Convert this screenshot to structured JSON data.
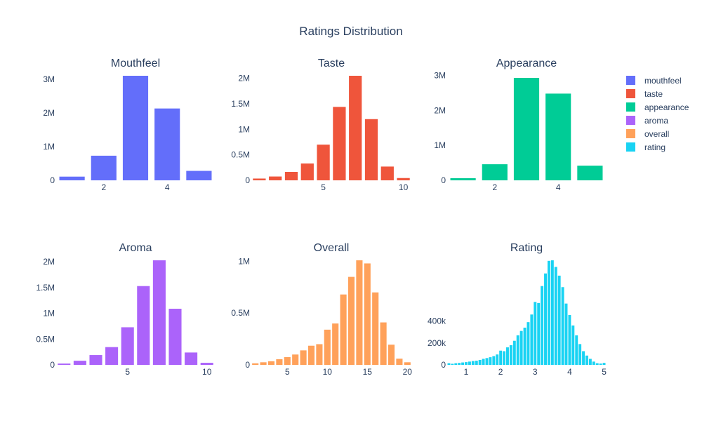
{
  "figure": {
    "title": "Ratings Distribution"
  },
  "legend": {
    "placement": "right",
    "items": [
      "mouthfeel",
      "taste",
      "appearance",
      "aroma",
      "overall",
      "rating"
    ]
  },
  "chart_data": [
    {
      "type": "bar",
      "name": "mouthfeel",
      "title": "Mouthfeel",
      "color": "#636efa",
      "x": [
        1,
        2,
        3,
        4,
        5
      ],
      "values": [
        110000,
        730000,
        3100000,
        2130000,
        280000
      ],
      "xlim": [
        0.5,
        5.5
      ],
      "ylim": [
        0,
        3100000
      ],
      "xticks": [
        {
          "v": 2,
          "label": "2"
        },
        {
          "v": 4,
          "label": "4"
        }
      ],
      "yticks": [
        {
          "v": 0,
          "label": "0"
        },
        {
          "v": 1000000,
          "label": "1M"
        },
        {
          "v": 2000000,
          "label": "2M"
        },
        {
          "v": 3000000,
          "label": "3M"
        }
      ],
      "grid": false
    },
    {
      "type": "bar",
      "name": "taste",
      "title": "Taste",
      "color": "#ef553b",
      "x": [
        1,
        2,
        3,
        4,
        5,
        6,
        7,
        8,
        9,
        10
      ],
      "values": [
        35000,
        75000,
        165000,
        330000,
        700000,
        1440000,
        2050000,
        1200000,
        270000,
        45000
      ],
      "xlim": [
        0.5,
        10.5
      ],
      "ylim": [
        0,
        2050000
      ],
      "xticks": [
        {
          "v": 5,
          "label": "5"
        },
        {
          "v": 10,
          "label": "10"
        }
      ],
      "yticks": [
        {
          "v": 0,
          "label": "0"
        },
        {
          "v": 500000,
          "label": "0.5M"
        },
        {
          "v": 1000000,
          "label": "1M"
        },
        {
          "v": 1500000,
          "label": "1.5M"
        },
        {
          "v": 2000000,
          "label": "2M"
        }
      ],
      "grid": false
    },
    {
      "type": "bar",
      "name": "appearance",
      "title": "Appearance",
      "color": "#00cc96",
      "x": [
        1,
        2,
        3,
        4,
        5
      ],
      "values": [
        60000,
        460000,
        2930000,
        2480000,
        420000
      ],
      "xlim": [
        0.5,
        5.5
      ],
      "ylim": [
        0,
        2990000
      ],
      "xticks": [
        {
          "v": 2,
          "label": "2"
        },
        {
          "v": 4,
          "label": "4"
        }
      ],
      "yticks": [
        {
          "v": 0,
          "label": "0"
        },
        {
          "v": 1000000,
          "label": "1M"
        },
        {
          "v": 2000000,
          "label": "2M"
        },
        {
          "v": 3000000,
          "label": "3M"
        }
      ],
      "grid": false
    },
    {
      "type": "bar",
      "name": "aroma",
      "title": "Aroma",
      "color": "#ab63fa",
      "x": [
        1,
        2,
        3,
        4,
        5,
        6,
        7,
        8,
        9,
        10
      ],
      "values": [
        25000,
        80000,
        190000,
        345000,
        730000,
        1530000,
        2030000,
        1090000,
        240000,
        40000
      ],
      "xlim": [
        0.5,
        10.5
      ],
      "ylim": [
        0,
        2030000
      ],
      "xticks": [
        {
          "v": 5,
          "label": "5"
        },
        {
          "v": 10,
          "label": "10"
        }
      ],
      "yticks": [
        {
          "v": 0,
          "label": "0"
        },
        {
          "v": 500000,
          "label": "0.5M"
        },
        {
          "v": 1000000,
          "label": "1M"
        },
        {
          "v": 1500000,
          "label": "1.5M"
        },
        {
          "v": 2000000,
          "label": "2M"
        }
      ],
      "grid": false
    },
    {
      "type": "bar",
      "name": "overall",
      "title": "Overall",
      "color": "#ffa15a",
      "x": [
        1,
        2,
        3,
        4,
        5,
        6,
        7,
        8,
        9,
        10,
        11,
        12,
        13,
        14,
        15,
        16,
        17,
        18,
        19,
        20
      ],
      "values": [
        15000,
        25000,
        35000,
        55000,
        75000,
        100000,
        140000,
        185000,
        200000,
        340000,
        400000,
        680000,
        850000,
        1010000,
        980000,
        700000,
        410000,
        195000,
        60000,
        25000
      ],
      "xlim": [
        0.5,
        20.5
      ],
      "ylim": [
        0,
        1010000
      ],
      "xticks": [
        {
          "v": 5,
          "label": "5"
        },
        {
          "v": 10,
          "label": "10"
        },
        {
          "v": 15,
          "label": "15"
        },
        {
          "v": 20,
          "label": "20"
        }
      ],
      "yticks": [
        {
          "v": 0,
          "label": "0"
        },
        {
          "v": 500000,
          "label": "0.5M"
        },
        {
          "v": 1000000,
          "label": "1M"
        }
      ],
      "grid": false
    },
    {
      "type": "bar",
      "name": "rating",
      "title": "Rating",
      "color": "#19d3f3",
      "x": [
        0.5,
        0.6,
        0.7,
        0.8,
        0.9,
        1.0,
        1.1,
        1.2,
        1.3,
        1.4,
        1.5,
        1.6,
        1.7,
        1.8,
        1.9,
        2.0,
        2.1,
        2.2,
        2.3,
        2.4,
        2.5,
        2.6,
        2.7,
        2.8,
        2.9,
        3.0,
        3.1,
        3.2,
        3.3,
        3.4,
        3.5,
        3.6,
        3.7,
        3.8,
        3.9,
        4.0,
        4.1,
        4.2,
        4.3,
        4.4,
        4.5,
        4.6,
        4.7,
        4.8,
        4.9,
        5.0
      ],
      "values": [
        15000,
        10000,
        15000,
        18000,
        22000,
        25000,
        30000,
        35000,
        38000,
        45000,
        55000,
        62000,
        70000,
        80000,
        95000,
        130000,
        125000,
        160000,
        180000,
        220000,
        270000,
        310000,
        340000,
        390000,
        460000,
        575000,
        565000,
        720000,
        835000,
        950000,
        955000,
        895000,
        815000,
        710000,
        560000,
        455000,
        360000,
        270000,
        190000,
        125000,
        85000,
        55000,
        30000,
        15000,
        12000,
        18000
      ],
      "xlim": [
        0.45,
        5.05
      ],
      "ylim": [
        0,
        955000
      ],
      "xticks": [
        {
          "v": 1,
          "label": "1"
        },
        {
          "v": 2,
          "label": "2"
        },
        {
          "v": 3,
          "label": "3"
        },
        {
          "v": 4,
          "label": "4"
        },
        {
          "v": 5,
          "label": "5"
        }
      ],
      "yticks": [
        {
          "v": 0,
          "label": "0"
        },
        {
          "v": 200000,
          "label": "200k"
        },
        {
          "v": 400000,
          "label": "400k"
        }
      ],
      "grid": false
    }
  ]
}
